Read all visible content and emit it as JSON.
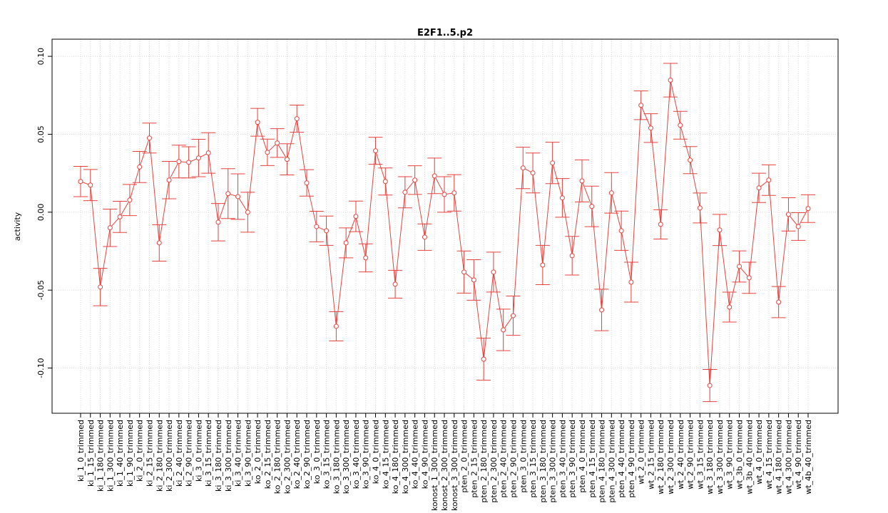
{
  "chart_data": {
    "type": "line",
    "title": "E2F1..5.p2",
    "ylabel": "activity",
    "categories": [
      "ki_1_0_trimmed",
      "ki_1_15_trimmed",
      "ki_1_180_trimmed",
      "ki_1_300_trimmed",
      "ki_1_40_trimmed",
      "ki_1_90_trimmed",
      "ki_2_0_trimmed",
      "ki_2_15_trimmed",
      "ki_2_180_trimmed",
      "ki_2_300_trimmed",
      "ki_2_40_trimmed",
      "ki_2_90_trimmed",
      "ki_3_0_trimmed",
      "ki_3_15_trimmed",
      "ki_3_180_trimmed",
      "ki_3_300_trimmed",
      "ki_3_40_trimmed",
      "ki_3_90_trimmed",
      "ko_2_0_trimmed",
      "ko_2_15_trimmed",
      "ko_2_180_trimmed",
      "ko_2_300_trimmed",
      "ko_2_40_trimmed",
      "ko_2_90_trimmed",
      "ko_3_0_trimmed",
      "ko_3_15_trimmed",
      "ko_3_180_trimmed",
      "ko_3_300_trimmed",
      "ko_3_40_trimmed",
      "ko_3_90_trimmed",
      "ko_4_0_trimmed",
      "ko_4_15_trimmed",
      "ko_4_180_trimmed",
      "ko_4_300_trimmed",
      "ko_4_40_trimmed",
      "ko_4_90_trimmed",
      "konost_1_300_trimmed",
      "konost_2_300_trimmed",
      "konost_3_300_trimmed",
      "pten_2_0_trimmed",
      "pten_2_15_trimmed",
      "pten_2_180_trimmed",
      "pten_2_300_trimmed",
      "pten_2_40_trimmed",
      "pten_2_90_trimmed",
      "pten_3_0_trimmed",
      "pten_3_15_trimmed",
      "pten_3_180_trimmed",
      "pten_3_300_trimmed",
      "pten_3_40_trimmed",
      "pten_3_90_trimmed",
      "pten_4_0_trimmed",
      "pten_4_15_trimmed",
      "pten_4_180_trimmed",
      "pten_4_300_trimmed",
      "pten_4_40_trimmed",
      "pten_4_90_trimmed",
      "wt_2_0_trimmed",
      "wt_2_15_trimmed",
      "wt_2_180_trimmed",
      "wt_2_300_trimmed",
      "wt_2_40_trimmed",
      "wt_2_90_trimmed",
      "wt_3_15_trimmed",
      "wt_3_180_trimmed",
      "wt_3_300_trimmed",
      "wt_3_90_trimmed",
      "wt_3b_0_trimmed",
      "wt_3b_40_trimmed",
      "wt_4_0_trimmed",
      "wt_4_15_trimmed",
      "wt_4_180_trimmed",
      "wt_4_300_trimmed",
      "wt_4_90_trimmed",
      "wt_4b_40_trimmed"
    ],
    "values": [
      0.0197,
      0.0174,
      -0.048,
      -0.01,
      -0.003,
      0.0078,
      0.029,
      0.0476,
      -0.0197,
      0.0206,
      0.0325,
      0.032,
      0.0348,
      0.038,
      -0.0064,
      0.0119,
      0.01,
      0.0,
      0.0577,
      0.0384,
      0.0444,
      0.0339,
      0.06,
      0.0188,
      -0.0092,
      -0.0119,
      -0.0732,
      -0.0197,
      -0.0027,
      -0.0293,
      0.0394,
      0.0197,
      -0.0462,
      0.0128,
      0.0206,
      -0.016,
      0.0233,
      0.0114,
      0.0124,
      -0.0384,
      -0.0435,
      -0.0943,
      -0.0384,
      -0.0755,
      -0.0664,
      0.0284,
      0.0252,
      -0.0339,
      0.0316,
      0.0092,
      -0.0279,
      0.0201,
      0.0037,
      -0.0627,
      0.0124,
      -0.0119,
      -0.0449,
      0.0686,
      0.054,
      -0.0078,
      0.0847,
      0.0558,
      0.0334,
      0.0027,
      -0.1112,
      -0.0114,
      -0.0609,
      -0.0348,
      -0.0421,
      0.0156,
      0.0206,
      -0.0577,
      -0.0014,
      -0.0092,
      0.0023
    ],
    "errors": [
      0.0097,
      0.01,
      0.012,
      0.012,
      0.01,
      0.01,
      0.01,
      0.0096,
      0.0117,
      0.012,
      0.0105,
      0.01,
      0.012,
      0.013,
      0.012,
      0.016,
      0.0146,
      0.0128,
      0.0089,
      0.0085,
      0.0092,
      0.01,
      0.0087,
      0.0085,
      0.0098,
      0.0094,
      0.0094,
      0.0096,
      0.0098,
      0.009,
      0.0087,
      0.0087,
      0.0089,
      0.01,
      0.0092,
      0.0085,
      0.0114,
      0.0114,
      0.0117,
      0.0135,
      0.013,
      0.0135,
      0.0128,
      0.0133,
      0.0126,
      0.0133,
      0.0128,
      0.0126,
      0.0133,
      0.0124,
      0.0124,
      0.0135,
      0.013,
      0.0133,
      0.013,
      0.0126,
      0.0128,
      0.0092,
      0.0092,
      0.0094,
      0.0108,
      0.0089,
      0.0087,
      0.0096,
      0.0103,
      0.01,
      0.0096,
      0.01,
      0.01,
      0.0094,
      0.0098,
      0.01,
      0.0107,
      0.0089,
      0.0089
    ],
    "color": "#e8413c",
    "ylim": [
      -0.129,
      0.111
    ],
    "yticks": [
      {
        "value": -0.1,
        "label": "-0.10"
      },
      {
        "value": -0.05,
        "label": "-0.05"
      },
      {
        "value": 0,
        "label": "0.00"
      },
      {
        "value": 0.05,
        "label": "0.05"
      },
      {
        "value": 0.1,
        "label": "0.10"
      }
    ],
    "grid": true
  }
}
